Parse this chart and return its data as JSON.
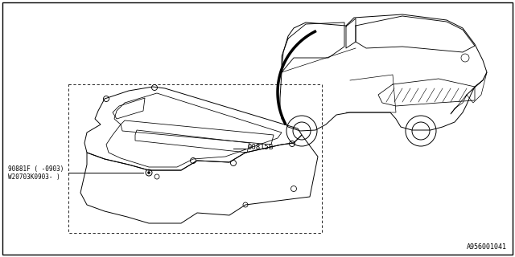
{
  "background_color": "#ffffff",
  "border_color": "#000000",
  "part_label_1": "90815B",
  "part_label_2": "90881F ( -0903)",
  "part_label_3": "W20703K0903- )",
  "catalog_number": "A956001041",
  "fig_width": 6.4,
  "fig_height": 3.2,
  "dpi": 100
}
